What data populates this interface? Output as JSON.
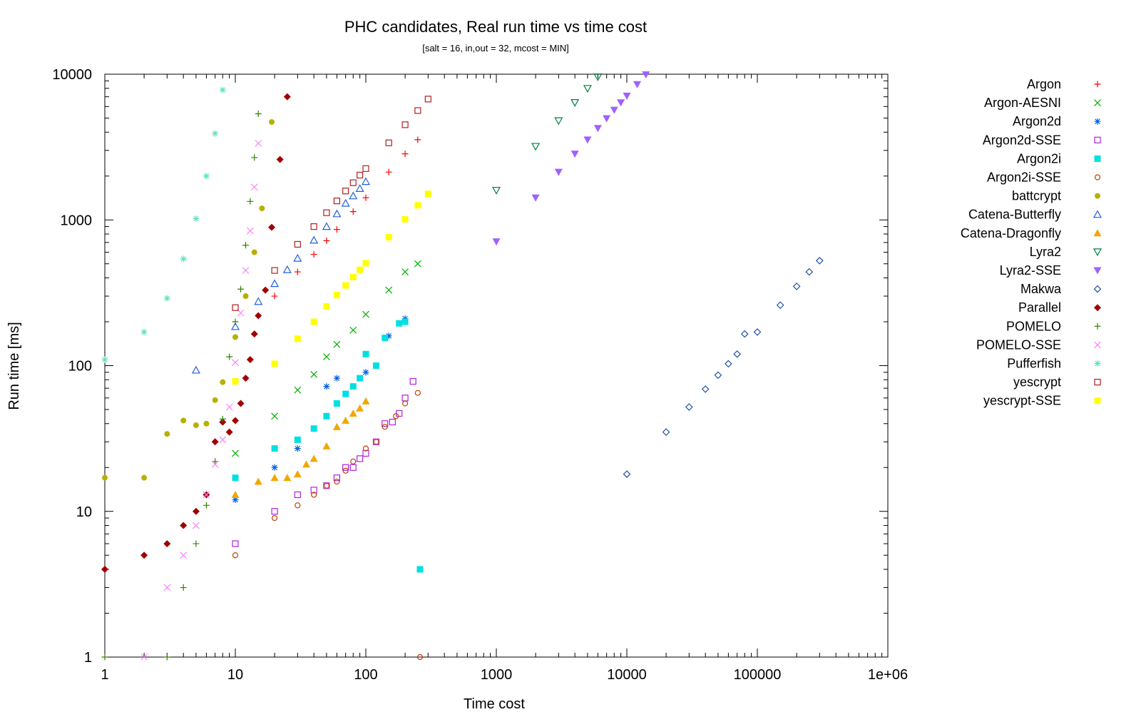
{
  "chart_data": {
    "type": "scatter",
    "title": "PHC candidates, Real run time vs time cost",
    "subtitle": "[salt = 16, in,out = 32, mcost = MIN]",
    "xlabel": "Time cost",
    "ylabel": "Run time [ms]",
    "xscale": "log",
    "yscale": "log",
    "xlim": [
      1,
      1000000
    ],
    "ylim": [
      1,
      10000
    ],
    "x_ticks": [
      1,
      10,
      100,
      1000,
      10000,
      100000,
      1000000
    ],
    "x_tick_labels": [
      "1",
      "10",
      "100",
      "1000",
      "10000",
      "100000",
      "1e+06"
    ],
    "y_ticks": [
      1,
      10,
      100,
      1000,
      10000
    ],
    "y_tick_labels": [
      "1",
      "10",
      "100",
      "1000",
      "10000"
    ],
    "grid": false,
    "legend_position": "right",
    "series": [
      {
        "name": "Argon",
        "color": "#ff0000",
        "marker": "plus",
        "x": [
          20,
          30,
          40,
          50,
          60,
          80,
          100,
          150,
          200,
          250
        ],
        "y": [
          300,
          440,
          580,
          720,
          860,
          1140,
          1420,
          2130,
          2840,
          3550
        ]
      },
      {
        "name": "Argon-AESNI",
        "color": "#00b000",
        "marker": "cross",
        "x": [
          10,
          20,
          30,
          40,
          50,
          60,
          80,
          100,
          150,
          200,
          250
        ],
        "y": [
          25,
          45,
          68,
          87,
          115,
          140,
          175,
          225,
          330,
          440,
          500
        ]
      },
      {
        "name": "Argon2d",
        "color": "#0060e0",
        "marker": "star",
        "x": [
          10,
          20,
          30,
          50,
          60,
          100,
          150,
          200
        ],
        "y": [
          12,
          20,
          27,
          72,
          82,
          90,
          160,
          210
        ]
      },
      {
        "name": "Argon2d-SSE",
        "color": "#b020e0",
        "marker": "square-open",
        "x": [
          10,
          20,
          30,
          40,
          50,
          60,
          70,
          80,
          90,
          100,
          120,
          140,
          160,
          180,
          200,
          230
        ],
        "y": [
          6,
          10,
          13,
          14,
          15,
          17,
          20,
          20,
          23,
          25,
          30,
          40,
          41,
          47,
          60,
          78
        ]
      },
      {
        "name": "Argon2i",
        "color": "#00e0e0",
        "marker": "square-filled",
        "x": [
          10,
          20,
          30,
          40,
          50,
          60,
          70,
          80,
          90,
          100,
          120,
          140,
          180,
          200,
          260
        ],
        "y": [
          17,
          27,
          31,
          37,
          45,
          55,
          64,
          72,
          82,
          120,
          100,
          155,
          195,
          200,
          4
        ]
      },
      {
        "name": "Argon2i-SSE",
        "color": "#c04000",
        "marker": "circle-open",
        "x": [
          10,
          20,
          30,
          40,
          50,
          60,
          70,
          80,
          100,
          120,
          140,
          170,
          200,
          250,
          260
        ],
        "y": [
          5,
          9,
          11,
          13,
          15,
          16,
          19,
          22,
          27,
          30,
          38,
          45,
          55,
          65,
          1
        ]
      },
      {
        "name": "battcrypt",
        "color": "#b8b000",
        "marker": "circle-filled",
        "x": [
          1,
          2,
          3,
          4,
          5,
          6,
          7,
          8,
          10,
          12,
          14,
          16,
          19
        ],
        "y": [
          17,
          17,
          34,
          42,
          39,
          40,
          58,
          77,
          157,
          300,
          600,
          1200,
          4700
        ]
      },
      {
        "name": "Catena-Butterfly",
        "color": "#2060e0",
        "marker": "triangle-up-open",
        "x": [
          5,
          10,
          15,
          20,
          25,
          30,
          40,
          50,
          60,
          70,
          80,
          90,
          100
        ],
        "y": [
          93,
          185,
          275,
          365,
          455,
          545,
          725,
          900,
          1100,
          1300,
          1460,
          1640,
          1830
        ]
      },
      {
        "name": "Catena-Dragonfly",
        "color": "#f0a800",
        "marker": "triangle-up-filled",
        "x": [
          10,
          15,
          20,
          25,
          30,
          35,
          40,
          50,
          60,
          70,
          80,
          90,
          100
        ],
        "y": [
          13,
          16,
          17,
          17,
          18,
          21,
          23,
          28,
          38,
          42,
          47,
          51,
          57
        ]
      },
      {
        "name": "Lyra2",
        "color": "#008040",
        "marker": "triangle-down-open",
        "x": [
          1000,
          2000,
          3000,
          4000,
          5000,
          6000
        ],
        "y": [
          1600,
          3200,
          4800,
          6400,
          8000,
          9600
        ]
      },
      {
        "name": "Lyra2-SSE",
        "color": "#a060ff",
        "marker": "triangle-down-filled",
        "x": [
          1000,
          2000,
          3000,
          4000,
          5000,
          6000,
          7000,
          8000,
          9000,
          10000,
          12000,
          14000
        ],
        "y": [
          710,
          1420,
          2130,
          2840,
          3550,
          4260,
          4970,
          5680,
          6390,
          7100,
          8520,
          9940
        ]
      },
      {
        "name": "Makwa",
        "color": "#2050a0",
        "marker": "diamond-open",
        "x": [
          10000,
          20000,
          30000,
          40000,
          50000,
          60000,
          70000,
          80000,
          100000,
          150000,
          200000,
          250000,
          300000
        ],
        "y": [
          18,
          35,
          52,
          69,
          86,
          103,
          120,
          165,
          170,
          260,
          350,
          440,
          525
        ]
      },
      {
        "name": "Parallel",
        "color": "#a00000",
        "marker": "diamond-filled",
        "x": [
          1,
          2,
          3,
          4,
          5,
          6,
          7,
          8,
          9,
          10,
          11,
          12,
          13,
          14,
          15,
          17,
          19,
          22,
          25
        ],
        "y": [
          4,
          5,
          6,
          8,
          10,
          13,
          30,
          41,
          35,
          42,
          55,
          82,
          110,
          165,
          220,
          330,
          890,
          2600,
          7000
        ]
      },
      {
        "name": "POMELO",
        "color": "#308000",
        "marker": "plus",
        "x": [
          1,
          3,
          4,
          5,
          6,
          7,
          8,
          9,
          10,
          11,
          12,
          13,
          14,
          15
        ],
        "y": [
          1,
          1,
          3,
          6,
          11,
          22,
          43,
          115,
          200,
          335,
          670,
          1340,
          2680,
          5350
        ]
      },
      {
        "name": "POMELO-SSE",
        "color": "#ff80ff",
        "marker": "cross",
        "x": [
          2,
          3,
          4,
          5,
          6,
          7,
          8,
          9,
          10,
          11,
          12,
          13,
          14,
          15
        ],
        "y": [
          1,
          3,
          5,
          8,
          13,
          21,
          31,
          52,
          105,
          230,
          450,
          840,
          1680,
          3350
        ]
      },
      {
        "name": "Pufferfish",
        "color": "#60e0c0",
        "marker": "star",
        "x": [
          1,
          2,
          3,
          4,
          5,
          6,
          7,
          8
        ],
        "y": [
          110,
          170,
          290,
          540,
          1020,
          2000,
          3920,
          7800
        ]
      },
      {
        "name": "yescrypt",
        "color": "#b02020",
        "marker": "square-open",
        "x": [
          10,
          20,
          30,
          40,
          50,
          60,
          70,
          80,
          90,
          100,
          150,
          200,
          250,
          300
        ],
        "y": [
          250,
          450,
          680,
          900,
          1120,
          1350,
          1580,
          1800,
          2030,
          2250,
          3380,
          4500,
          5630,
          6750
        ]
      },
      {
        "name": "yescrypt-SSE",
        "color": "#ffff00",
        "marker": "square-filled",
        "x": [
          10,
          20,
          30,
          40,
          50,
          60,
          70,
          80,
          90,
          100,
          150,
          200,
          250,
          300
        ],
        "y": [
          78,
          103,
          153,
          200,
          255,
          305,
          355,
          405,
          455,
          505,
          760,
          1010,
          1260,
          1510
        ]
      }
    ]
  }
}
